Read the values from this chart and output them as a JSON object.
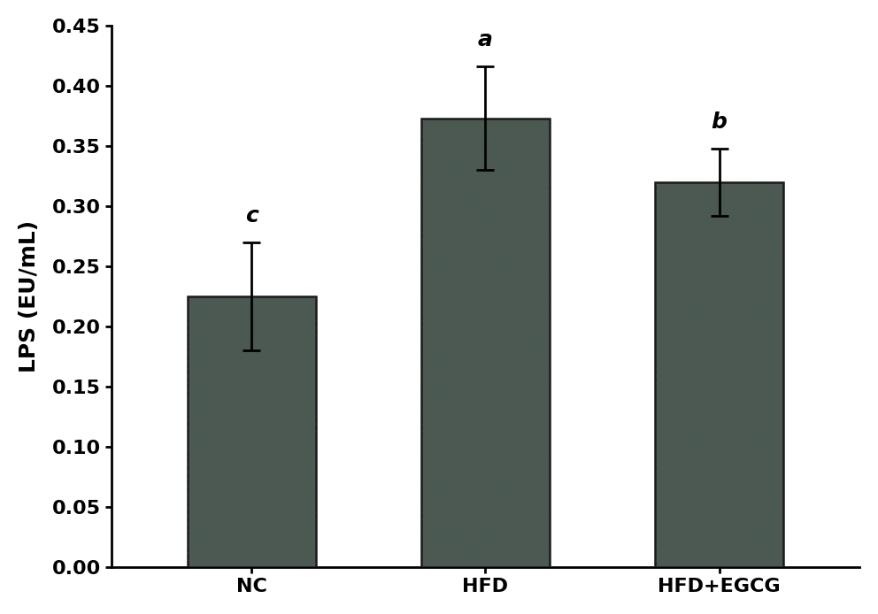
{
  "categories": [
    "NC",
    "HFD",
    "HFD+EGCG"
  ],
  "values": [
    0.225,
    0.373,
    0.32
  ],
  "errors": [
    0.045,
    0.043,
    0.028
  ],
  "labels": [
    "c",
    "a",
    "b"
  ],
  "bar_color": "#4a5a50",
  "bar_edge_color": "#1a1a1a",
  "ylabel": "LPS (EU/mL)",
  "ylim": [
    0,
    0.45
  ],
  "yticks": [
    0.0,
    0.05,
    0.1,
    0.15,
    0.2,
    0.25,
    0.3,
    0.35,
    0.4,
    0.45
  ],
  "title": "",
  "background_color": "#ffffff",
  "bar_width": 0.55,
  "tick_fontsize": 16,
  "label_fontsize": 18,
  "annotation_fontsize": 18,
  "error_capsize": 7,
  "error_linewidth": 2.0,
  "hatch_color": "#7a3a7a",
  "hatch_pattern": "////"
}
